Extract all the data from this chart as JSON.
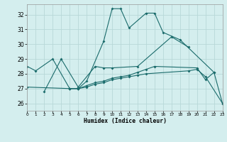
{
  "bg_color": "#d4eeee",
  "grid_color": "#b8d8d8",
  "line_color": "#1a6b6b",
  "xlabel": "Humidex (Indice chaleur)",
  "xlim": [
    0,
    23
  ],
  "ylim": [
    25.5,
    32.7
  ],
  "yticks": [
    26,
    27,
    28,
    29,
    30,
    31,
    32
  ],
  "xticks": [
    0,
    1,
    2,
    3,
    4,
    5,
    6,
    7,
    8,
    9,
    10,
    11,
    12,
    13,
    14,
    15,
    16,
    17,
    18,
    19,
    20,
    21,
    22,
    23
  ],
  "line1_x": [
    0,
    1,
    3,
    5,
    6,
    7,
    9,
    10,
    11,
    12,
    14,
    15,
    16,
    18,
    22
  ],
  "line1_y": [
    28.5,
    28.2,
    29.0,
    27.0,
    27.0,
    27.5,
    30.2,
    32.4,
    32.4,
    31.1,
    32.1,
    32.1,
    30.8,
    30.3,
    28.1
  ],
  "line2_x": [
    2,
    4,
    6,
    8,
    9,
    10,
    13,
    17,
    19
  ],
  "line2_y": [
    26.8,
    29.0,
    27.1,
    28.5,
    28.4,
    28.4,
    28.5,
    30.5,
    29.8
  ],
  "line3_x": [
    0,
    5,
    6,
    7,
    8,
    9,
    10,
    11,
    12,
    13,
    14,
    19,
    20,
    21,
    23
  ],
  "line3_y": [
    27.1,
    27.0,
    27.0,
    27.1,
    27.3,
    27.4,
    27.6,
    27.7,
    27.8,
    27.9,
    28.0,
    28.2,
    28.3,
    27.8,
    26.0
  ],
  "line4_x": [
    5,
    6,
    7,
    8,
    9,
    10,
    11,
    12,
    13,
    14,
    15,
    20,
    21,
    22,
    23
  ],
  "line4_y": [
    27.0,
    27.0,
    27.2,
    27.4,
    27.5,
    27.7,
    27.8,
    27.9,
    28.1,
    28.3,
    28.5,
    28.4,
    27.6,
    28.1,
    26.0
  ]
}
